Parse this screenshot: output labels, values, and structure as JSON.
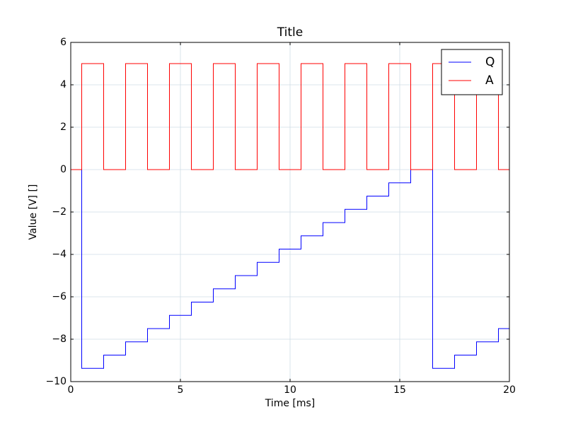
{
  "chart_data": {
    "type": "line",
    "title": "Title",
    "x_label": "Time  [ms]",
    "y_label": "Value [V] []",
    "x": [
      0,
      0.5,
      0.5,
      1.5,
      1.5,
      2.5,
      2.5,
      3.5,
      3.5,
      4.5,
      4.5,
      5.5,
      5.5,
      6.5,
      6.5,
      7.5,
      7.5,
      8.5,
      8.5,
      9.5,
      9.5,
      10.5,
      10.5,
      11.5,
      11.5,
      12.5,
      12.5,
      13.5,
      13.5,
      14.5,
      14.5,
      15.5,
      15.5,
      16.5,
      16.5,
      17.5,
      17.5,
      18.5,
      18.5,
      19.5,
      19.5,
      20
    ],
    "series": [
      {
        "name": "Q",
        "color": "#0000ff",
        "values": [
          0,
          0,
          -9.375,
          -9.375,
          -8.75,
          -8.75,
          -8.125,
          -8.125,
          -7.5,
          -7.5,
          -6.875,
          -6.875,
          -6.25,
          -6.25,
          -5.625,
          -5.625,
          -5,
          -5,
          -4.375,
          -4.375,
          -3.75,
          -3.75,
          -3.125,
          -3.125,
          -2.5,
          -2.5,
          -1.875,
          -1.875,
          -1.25,
          -1.25,
          -0.625,
          -0.625,
          0,
          0,
          -9.375,
          -9.375,
          -8.75,
          -8.75,
          -8.125,
          -8.125,
          -7.5,
          -7.5
        ]
      },
      {
        "name": "A",
        "color": "#ff0000",
        "values": [
          0,
          0,
          5,
          5,
          0,
          0,
          5,
          5,
          0,
          0,
          5,
          5,
          0,
          0,
          5,
          5,
          0,
          0,
          5,
          5,
          0,
          0,
          5,
          5,
          0,
          0,
          5,
          5,
          0,
          0,
          5,
          5,
          0,
          0,
          5,
          5,
          0,
          0,
          5,
          5,
          0,
          0
        ]
      }
    ],
    "xlim": [
      0,
      20
    ],
    "xticks": [
      0,
      5,
      10,
      15,
      20
    ],
    "ylim": [
      -10,
      6
    ],
    "yticks": [
      {
        "value": -10,
        "label": "−10"
      },
      {
        "value": -8,
        "label": "−8"
      },
      {
        "value": -6,
        "label": "−6"
      },
      {
        "value": -4,
        "label": "−4"
      },
      {
        "value": -2,
        "label": "−2"
      },
      0,
      2,
      4,
      6
    ],
    "grid": true,
    "legend": "upper right"
  }
}
